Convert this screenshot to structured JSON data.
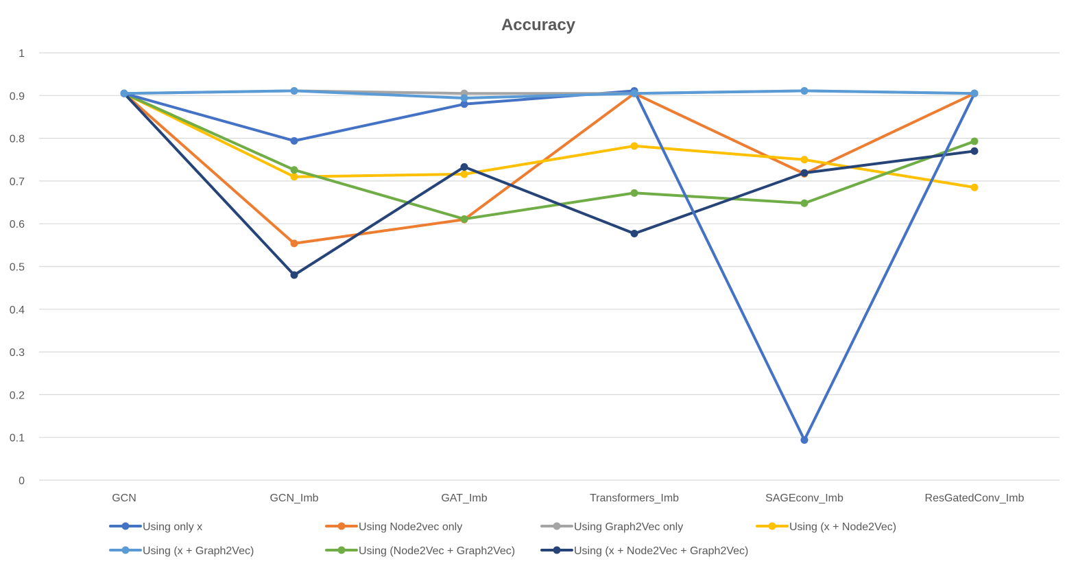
{
  "chart_data": {
    "type": "line",
    "title": "Accuracy",
    "xlabel": "",
    "ylabel": "",
    "categories": [
      "GCN",
      "GCN_Imb",
      "GAT_Imb",
      "Transformers_Imb",
      "SAGEconv_Imb",
      "ResGatedConv_Imb"
    ],
    "ylim": [
      0,
      1
    ],
    "yticks": [
      "0",
      "0.1",
      "0.2",
      "0.3",
      "0.4",
      "0.5",
      "0.6",
      "0.7",
      "0.8",
      "0.9",
      "1"
    ],
    "grid": true,
    "legend_position": "bottom",
    "series": [
      {
        "name": "Using only x",
        "color": "#4472C4",
        "values": [
          0.905,
          0.794,
          0.88,
          0.911,
          0.094,
          0.905
        ]
      },
      {
        "name": "Using Node2vec only",
        "color": "#ED7D31",
        "values": [
          0.905,
          0.554,
          0.61,
          0.905,
          0.717,
          0.905
        ]
      },
      {
        "name": "Using Graph2Vec only",
        "color": "#A5A5A5",
        "values": [
          0.905,
          0.911,
          0.905,
          0.905,
          0.911,
          0.905
        ]
      },
      {
        "name": "Using (x + Node2Vec)",
        "color": "#FFC000",
        "values": [
          0.905,
          0.71,
          0.716,
          0.782,
          0.75,
          0.685
        ]
      },
      {
        "name": "Using (x + Graph2Vec)",
        "color": "#5B9BD5",
        "values": [
          0.905,
          0.911,
          0.894,
          0.905,
          0.911,
          0.905
        ]
      },
      {
        "name": "Using (Node2Vec + Graph2Vec)",
        "color": "#70AD47",
        "values": [
          0.905,
          0.726,
          0.611,
          0.672,
          0.648,
          0.793
        ]
      },
      {
        "name": "Using (x + Node2Vec + Graph2Vec)",
        "color": "#264478",
        "values": [
          0.905,
          0.48,
          0.733,
          0.577,
          0.719,
          0.77
        ]
      }
    ]
  }
}
